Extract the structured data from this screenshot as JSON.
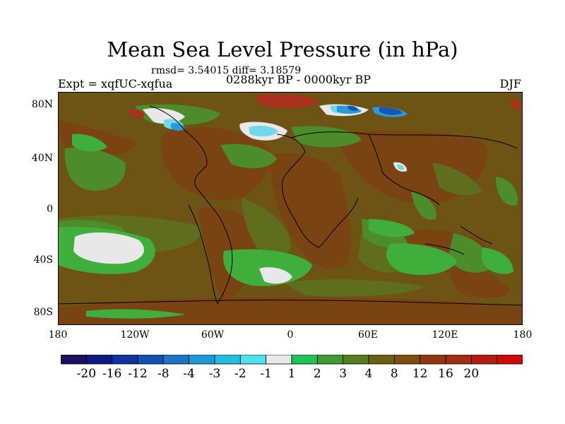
{
  "title": "Mean Sea Level Pressure (in hPa)",
  "stats": "rmsd= 3.54015 diff= 3.18579",
  "experiment": "Expt = xqfUC-xqfua",
  "period": "0288kyr BP - 0000kyr BP",
  "season": "DJF",
  "lat_labels": [
    "80N",
    "40N",
    "0",
    "40S",
    "80S"
  ],
  "lon_labels": [
    "180",
    "120W",
    "60W",
    "0",
    "60E",
    "120E",
    "180"
  ],
  "colorbar": {
    "colors": [
      "#1b0f5b",
      "#10197d",
      "#1132a3",
      "#124fb1",
      "#1f72c4",
      "#1b9ad6",
      "#24bde2",
      "#4ee0ee",
      "#e8e8e8",
      "#1fc15a",
      "#3f9a33",
      "#547d1f",
      "#6a6010",
      "#7e4b10",
      "#8d3a12",
      "#a02c12",
      "#b51c10",
      "#cc0a08"
    ],
    "labels": [
      "-20",
      "-16",
      "-12",
      "-8",
      "-4",
      "-3",
      "-2",
      "-1",
      "1",
      "2",
      "3",
      "4",
      "8",
      "12",
      "16",
      "20"
    ]
  },
  "map_colors": {
    "background": "#6e5414",
    "green_light": "#3fae3a",
    "green_mid": "#4c8c2a",
    "olive": "#5f6e1c",
    "brown_dark": "#7a4312",
    "red": "#a8321a",
    "white": "#e8e8e8",
    "blue_light": "#6fd8ea",
    "blue_mid": "#2a9ad8",
    "blue_dark": "#1258b0",
    "coast": "#000000"
  }
}
